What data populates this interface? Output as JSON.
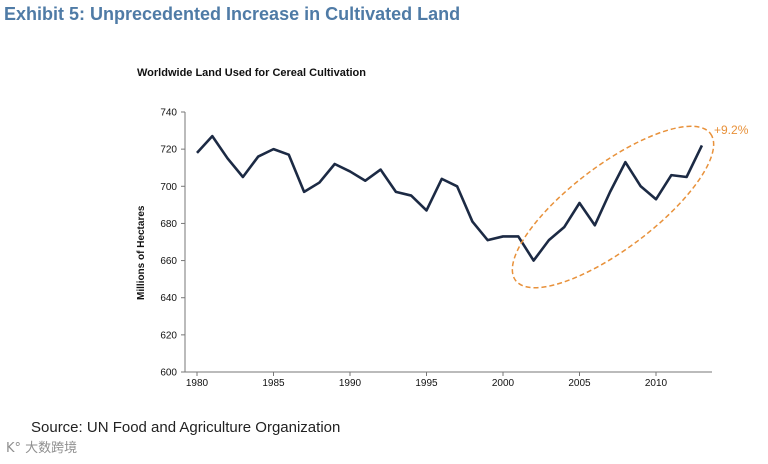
{
  "exhibit_title": "Exhibit 5: Unprecedented Increase in Cultivated Land",
  "source": "Source: UN Food and Agriculture Organization",
  "watermark": "K° 大数跨境",
  "chart_data": {
    "type": "line",
    "title": "Worldwide Land Used for Cereal Cultivation",
    "xlabel": "",
    "ylabel": "Millions of Hectares",
    "ylim": [
      600,
      740
    ],
    "xlim": [
      1980,
      2013
    ],
    "yticks": [
      600,
      620,
      640,
      660,
      680,
      700,
      720,
      740
    ],
    "xticks": [
      1980,
      1985,
      1990,
      1995,
      2000,
      2005,
      2010
    ],
    "x": [
      1980,
      1981,
      1982,
      1983,
      1984,
      1985,
      1986,
      1987,
      1988,
      1989,
      1990,
      1991,
      1992,
      1993,
      1994,
      1995,
      1996,
      1997,
      1998,
      1999,
      2000,
      2001,
      2002,
      2003,
      2004,
      2005,
      2006,
      2007,
      2008,
      2009,
      2010,
      2011,
      2012,
      2013
    ],
    "values": [
      718,
      727,
      715,
      705,
      716,
      720,
      717,
      697,
      702,
      712,
      708,
      703,
      709,
      697,
      695,
      687,
      704,
      700,
      681,
      671,
      673,
      673,
      660,
      671,
      678,
      691,
      679,
      697,
      713,
      700,
      693,
      706,
      705,
      722
    ],
    "annotation": "+9.2%",
    "line_color": "#1c2a44",
    "annotation_color": "#e8913a"
  }
}
